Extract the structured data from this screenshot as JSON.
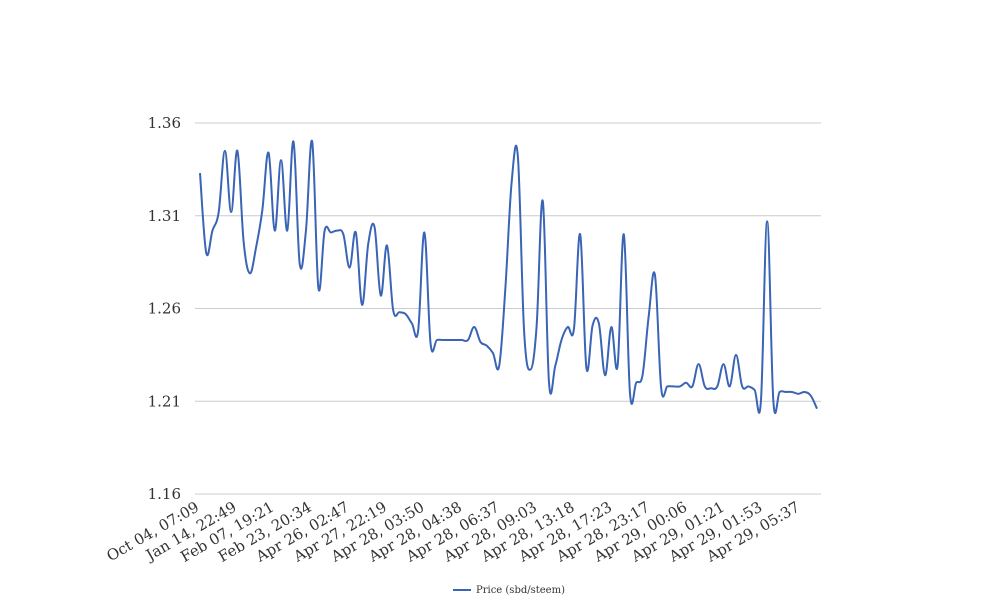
{
  "chart_data": {
    "type": "line",
    "title": "",
    "xlabel": "",
    "ylabel": "",
    "ylim": [
      1.16,
      1.36
    ],
    "y_ticks": [
      "1.16",
      "1.21",
      "1.26",
      "1.31",
      "1.36"
    ],
    "x_tick_labels": [
      "Oct 04, 07:09",
      "Jan 14, 22:49",
      "Feb 07, 19:21",
      "Feb 23, 20:34",
      "Apr 26, 02:47",
      "Apr 27, 22:19",
      "Apr 28, 03:50",
      "Apr 28, 04:38",
      "Apr 28, 06:37",
      "Apr 28, 09:03",
      "Apr 28, 13:18",
      "Apr 28, 17:23",
      "Apr 28, 23:17",
      "Apr 29, 00:06",
      "Apr 29, 01:21",
      "Apr 29, 01:53",
      "Apr 29, 05:37"
    ],
    "grid": true,
    "legend_position": "bottom",
    "series": [
      {
        "name": "Price (sbd/steem)",
        "color": "#3a64b5",
        "values": [
          1.333,
          1.29,
          1.302,
          1.312,
          1.345,
          1.312,
          1.345,
          1.296,
          1.279,
          1.293,
          1.313,
          1.344,
          1.302,
          1.34,
          1.302,
          1.35,
          1.284,
          1.302,
          1.35,
          1.271,
          1.302,
          1.301,
          1.302,
          1.3,
          1.282,
          1.301,
          1.262,
          1.295,
          1.304,
          1.267,
          1.294,
          1.259,
          1.258,
          1.257,
          1.252,
          1.248,
          1.301,
          1.241,
          1.243,
          1.243,
          1.243,
          1.243,
          1.243,
          1.243,
          1.25,
          1.242,
          1.24,
          1.236,
          1.229,
          1.271,
          1.328,
          1.342,
          1.248,
          1.227,
          1.25,
          1.318,
          1.22,
          1.229,
          1.243,
          1.25,
          1.249,
          1.3,
          1.228,
          1.251,
          1.252,
          1.224,
          1.25,
          1.229,
          1.3,
          1.214,
          1.22,
          1.224,
          1.256,
          1.278,
          1.217,
          1.218,
          1.218,
          1.218,
          1.22,
          1.218,
          1.23,
          1.218,
          1.217,
          1.218,
          1.23,
          1.218,
          1.235,
          1.218,
          1.218,
          1.216,
          1.21,
          1.307,
          1.21,
          1.215,
          1.215,
          1.215,
          1.214,
          1.215,
          1.213,
          1.206
        ]
      }
    ]
  }
}
